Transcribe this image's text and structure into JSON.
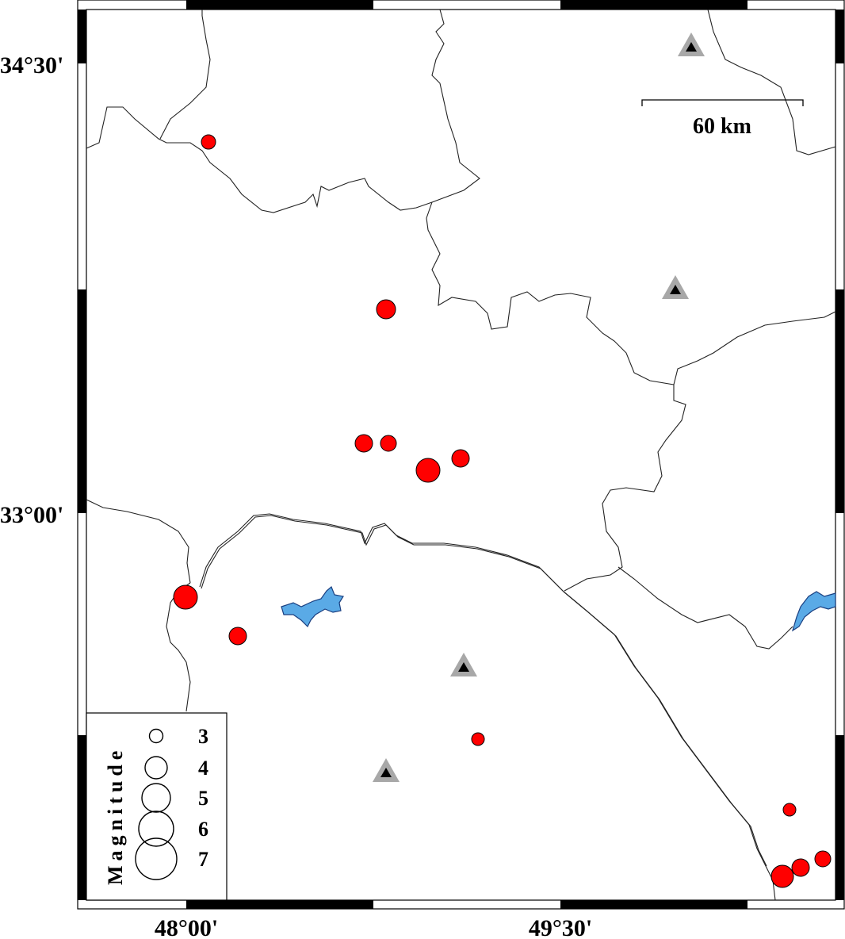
{
  "map": {
    "lat_labels": [
      "34°30'",
      "33°00'"
    ],
    "lon_labels": [
      "48°00'",
      "49°30'"
    ],
    "scale_bar": {
      "label": "60 km"
    },
    "colors": {
      "event": "#ff0000",
      "water": "#5aaae6",
      "station_outer": "#a8a8a8",
      "station_inner": "#000000"
    },
    "legend": {
      "title": "Magnitude",
      "entries": [
        {
          "label": "3",
          "magnitude": 3
        },
        {
          "label": "4",
          "magnitude": 4
        },
        {
          "label": "5",
          "magnitude": 5
        },
        {
          "label": "6",
          "magnitude": 6
        },
        {
          "label": "7",
          "magnitude": 7
        }
      ]
    },
    "events_icon": "red-circle",
    "stations_icon": "triangle"
  }
}
